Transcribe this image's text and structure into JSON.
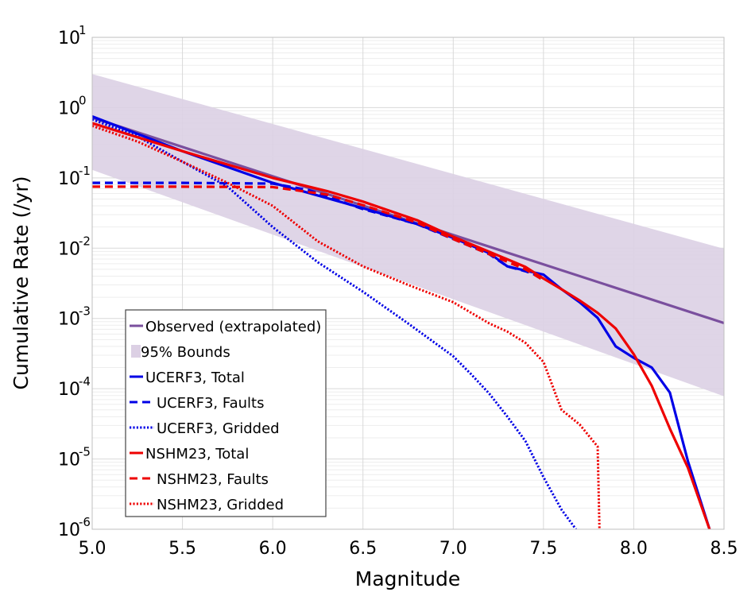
{
  "chart_data": {
    "type": "line",
    "xlabel": "Magnitude",
    "ylabel": "Cumulative Rate (/yr)",
    "xlim": [
      5.0,
      8.5
    ],
    "ylim": [
      1e-06,
      10
    ],
    "y_scale": "log",
    "grid": true,
    "legend_position": "bottom-left",
    "x_ticks": [
      "5.0",
      "5.5",
      "6.0",
      "6.5",
      "7.0",
      "7.5",
      "8.0",
      "8.5"
    ],
    "y_ticks": [
      {
        "base": "10",
        "exp": "-6"
      },
      {
        "base": "10",
        "exp": "-5"
      },
      {
        "base": "10",
        "exp": "-4"
      },
      {
        "base": "10",
        "exp": "-3"
      },
      {
        "base": "10",
        "exp": "-2"
      },
      {
        "base": "10",
        "exp": "-1"
      },
      {
        "base": "10",
        "exp": "0"
      },
      {
        "base": "10",
        "exp": "1"
      }
    ],
    "bounds": {
      "name": "95% Bounds",
      "color": "#dcd0e4",
      "x": [
        5.0,
        8.5
      ],
      "upper": [
        3.0,
        0.0098
      ],
      "lower": [
        0.13,
        7.8e-05
      ]
    },
    "series": [
      {
        "name": "Observed (extrapolated)",
        "color": "#7a4f9e",
        "dash": "solid",
        "x": [
          5.0,
          8.5
        ],
        "y": [
          0.72,
          0.00086
        ]
      },
      {
        "name": "UCERF3, Total",
        "color": "#0000e6",
        "dash": "solid",
        "x": [
          5.0,
          5.5,
          6.0,
          6.2,
          6.5,
          6.8,
          7.0,
          7.2,
          7.3,
          7.4,
          7.5,
          7.6,
          7.7,
          7.8,
          7.9,
          8.0,
          8.1,
          8.2,
          8.3,
          8.42
        ],
        "y": [
          0.75,
          0.24,
          0.085,
          0.061,
          0.037,
          0.022,
          0.014,
          0.0085,
          0.0055,
          0.0048,
          0.0042,
          0.0026,
          0.0017,
          0.00102,
          0.0004,
          0.000275,
          0.0002,
          8.8e-05,
          9.3e-06,
          1e-06
        ]
      },
      {
        "name": "UCERF3, Faults",
        "color": "#0000e6",
        "dash": "dashed",
        "x": [
          5.0,
          5.5,
          6.0,
          6.2,
          6.5,
          6.8,
          7.0,
          7.2,
          7.3,
          7.4,
          7.5
        ],
        "y": [
          0.085,
          0.085,
          0.083,
          0.067,
          0.036,
          0.022,
          0.0135,
          0.0082,
          0.0055,
          0.0047,
          0.0038
        ]
      },
      {
        "name": "UCERF3, Gridded",
        "color": "#0000e6",
        "dash": "dotted",
        "x": [
          5.0,
          5.25,
          5.5,
          5.75,
          6.0,
          6.25,
          6.5,
          6.75,
          7.0,
          7.1,
          7.2,
          7.3,
          7.4,
          7.5,
          7.6,
          7.68
        ],
        "y": [
          0.68,
          0.39,
          0.17,
          0.075,
          0.02,
          0.0063,
          0.0024,
          0.00085,
          0.00029,
          0.00016,
          8.5e-05,
          4e-05,
          1.8e-05,
          5.5e-06,
          1.9e-06,
          1e-06
        ]
      },
      {
        "name": "NSHM23, Total",
        "color": "#ee0000",
        "dash": "solid",
        "x": [
          5.0,
          5.5,
          6.0,
          6.3,
          6.5,
          6.8,
          7.0,
          7.2,
          7.4,
          7.5,
          7.6,
          7.7,
          7.8,
          7.9,
          8.0,
          8.1,
          8.2,
          8.3,
          8.42
        ],
        "y": [
          0.6,
          0.24,
          0.1,
          0.065,
          0.046,
          0.025,
          0.0145,
          0.0089,
          0.0054,
          0.0037,
          0.0026,
          0.0018,
          0.0012,
          0.00072,
          0.00031,
          0.00011,
          2.7e-05,
          7.5e-06,
          1e-06
        ]
      },
      {
        "name": "NSHM23, Faults",
        "color": "#ee0000",
        "dash": "dashed",
        "x": [
          5.0,
          5.5,
          6.0,
          6.3,
          6.5,
          6.8,
          7.0,
          7.2,
          7.4,
          7.5
        ],
        "y": [
          0.075,
          0.075,
          0.074,
          0.058,
          0.041,
          0.023,
          0.0135,
          0.0082,
          0.005,
          0.0035
        ]
      },
      {
        "name": "NSHM23, Gridded",
        "color": "#ee0000",
        "dash": "dotted",
        "x": [
          5.0,
          5.25,
          5.5,
          5.75,
          6.0,
          6.25,
          6.5,
          6.75,
          7.0,
          7.1,
          7.2,
          7.3,
          7.4,
          7.5,
          7.55,
          7.6,
          7.7,
          7.8,
          7.81
        ],
        "y": [
          0.55,
          0.33,
          0.17,
          0.085,
          0.04,
          0.0125,
          0.0055,
          0.003,
          0.0017,
          0.0012,
          0.00085,
          0.00065,
          0.00045,
          0.00024,
          0.00011,
          5e-05,
          3.1e-05,
          1.5e-05,
          1e-06
        ]
      }
    ],
    "legend_order": [
      "Observed (extrapolated)",
      "95% Bounds",
      "UCERF3, Total",
      "UCERF3, Faults",
      "UCERF3, Gridded",
      "NSHM23, Total",
      "NSHM23, Faults",
      "NSHM23, Gridded"
    ]
  }
}
